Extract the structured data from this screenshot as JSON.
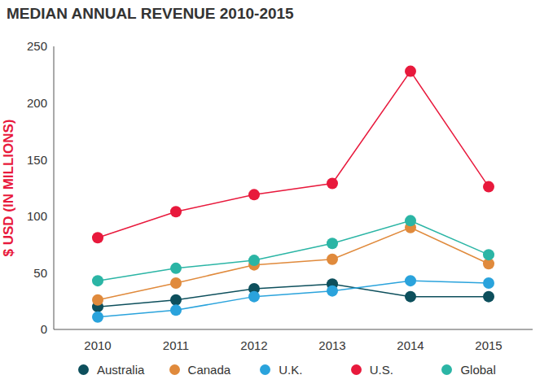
{
  "chart_data": {
    "type": "line",
    "title": "MEDIAN ANNUAL REVENUE 2010-2015",
    "y_label": "$ USD (IN MILLIONS)",
    "categories": [
      "2010",
      "2011",
      "2012",
      "2013",
      "2014",
      "2015"
    ],
    "series": [
      {
        "name": "Australia",
        "color": "#0d4f5c",
        "values": [
          20,
          26,
          36,
          40,
          29,
          29
        ]
      },
      {
        "name": "Canada",
        "color": "#e08a3c",
        "values": [
          26,
          41,
          57,
          62,
          90,
          58
        ]
      },
      {
        "name": "U.K.",
        "color": "#2aa3dc",
        "values": [
          11,
          17,
          29,
          34,
          43,
          41
        ]
      },
      {
        "name": "U.S.",
        "color": "#e8193c",
        "values": [
          81,
          104,
          119,
          129,
          228,
          126
        ]
      },
      {
        "name": "Global",
        "color": "#2bb5a5",
        "values": [
          43,
          54,
          61,
          76,
          96,
          66
        ]
      }
    ],
    "ylim": [
      0,
      250
    ],
    "yticks": [
      0,
      50,
      100,
      150,
      200,
      250
    ],
    "grid": false,
    "legend": "bottom",
    "marker": "circle"
  }
}
